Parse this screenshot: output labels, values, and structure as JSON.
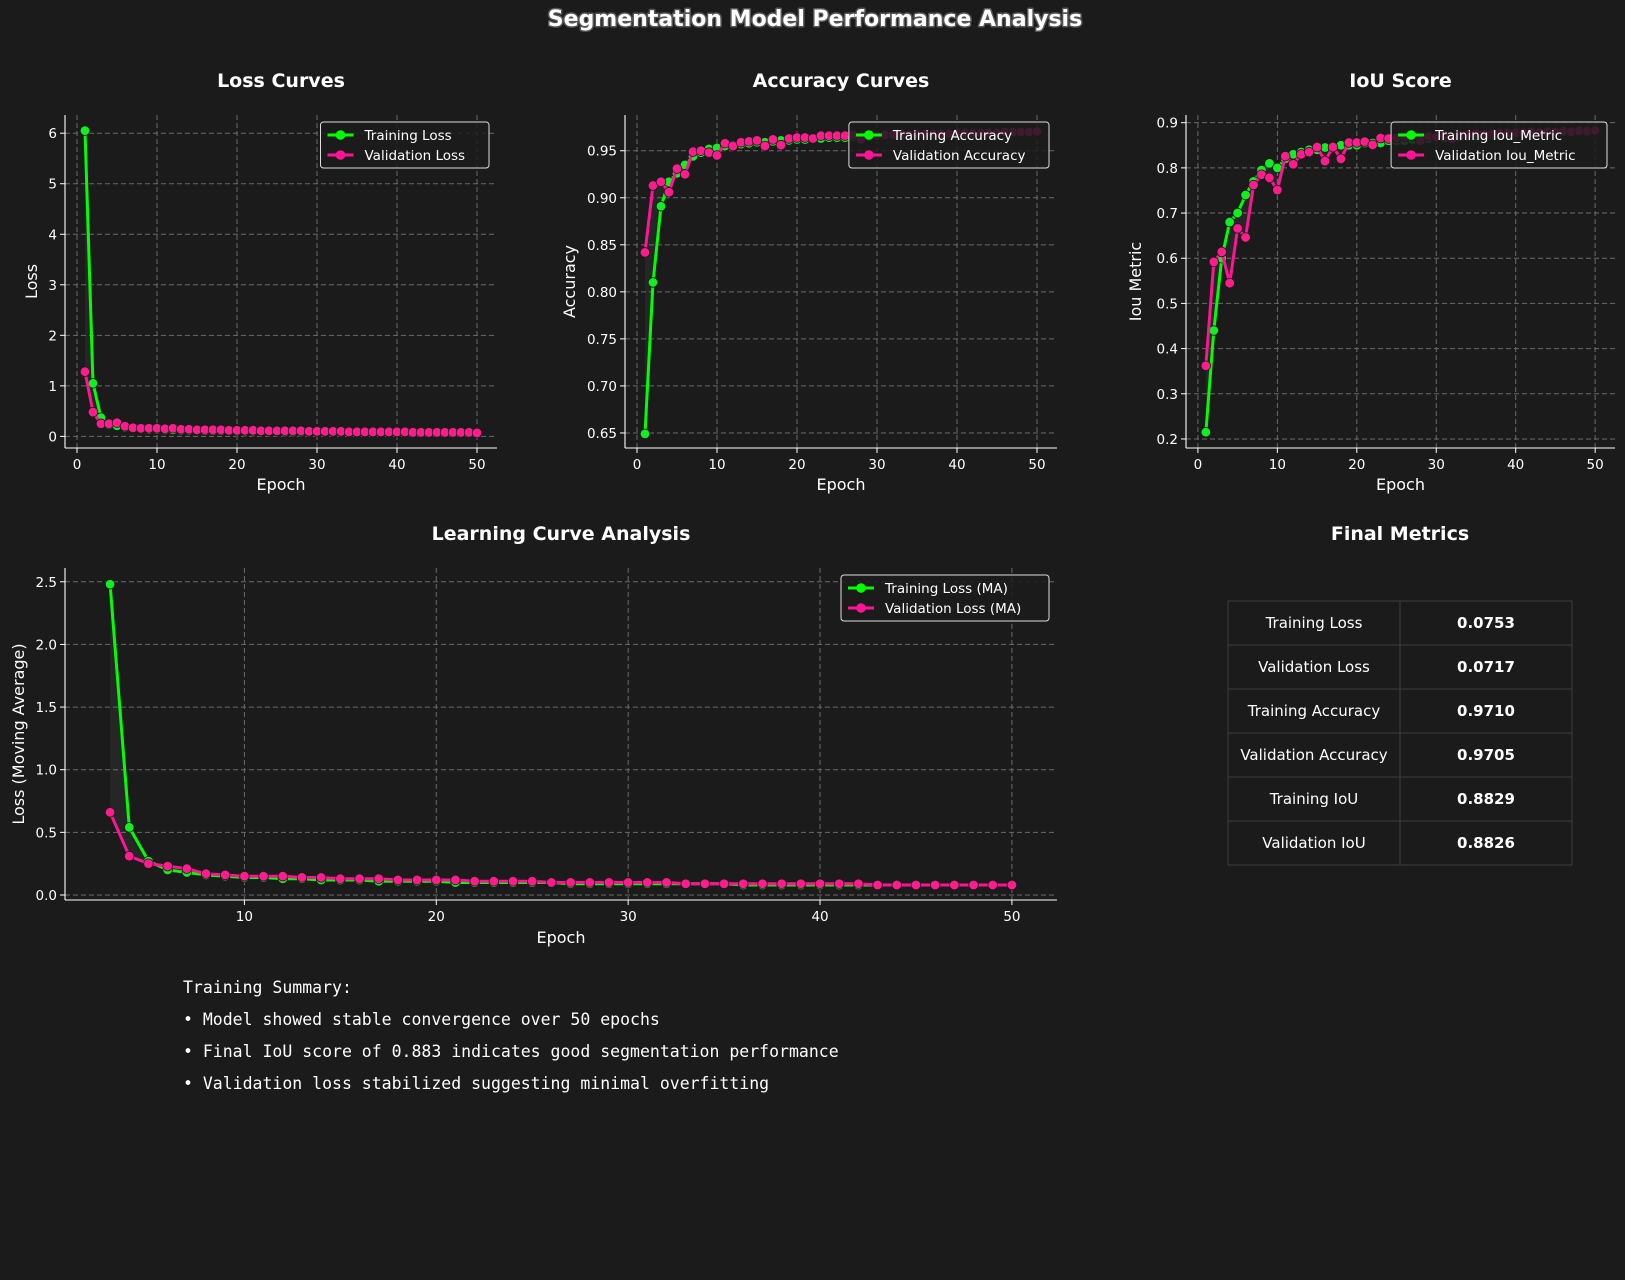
{
  "title": "Segmentation Model Performance Analysis",
  "colors": {
    "background": "#1b1b1b",
    "train": "#00ff00",
    "train_marker": "#11ee22",
    "val": "#ff1493",
    "val_marker": "#ff1c8d",
    "text": "#ffffff",
    "grid": "#6a6a6a"
  },
  "chart_data": [
    {
      "type": "line",
      "title": "Loss Curves",
      "xlabel": "Epoch",
      "ylabel": "Loss",
      "xlim": [
        -1.5,
        52.5
      ],
      "ylim": [
        -0.23,
        6.36
      ],
      "xticks": [
        0,
        10,
        20,
        30,
        40,
        50
      ],
      "yticks": [
        0,
        1,
        2,
        3,
        4,
        5,
        6
      ],
      "tick_format": 0,
      "legend": "top-right",
      "grid": true,
      "x": [
        1,
        2,
        3,
        4,
        5,
        6,
        7,
        8,
        9,
        10,
        11,
        12,
        13,
        14,
        15,
        16,
        17,
        18,
        19,
        20,
        21,
        22,
        23,
        24,
        25,
        26,
        27,
        28,
        29,
        30,
        31,
        32,
        33,
        34,
        35,
        36,
        37,
        38,
        39,
        40,
        41,
        42,
        43,
        44,
        45,
        46,
        47,
        48,
        49,
        50
      ],
      "series": [
        {
          "name": "Training Loss",
          "role": "train",
          "values": [
            6.05,
            1.05,
            0.37,
            0.23,
            0.21,
            0.18,
            0.16,
            0.15,
            0.14,
            0.14,
            0.13,
            0.13,
            0.12,
            0.12,
            0.12,
            0.11,
            0.11,
            0.11,
            0.11,
            0.1,
            0.1,
            0.1,
            0.1,
            0.1,
            0.1,
            0.09,
            0.09,
            0.09,
            0.09,
            0.09,
            0.09,
            0.09,
            0.09,
            0.09,
            0.08,
            0.08,
            0.08,
            0.08,
            0.08,
            0.08,
            0.08,
            0.08,
            0.08,
            0.08,
            0.08,
            0.08,
            0.08,
            0.08,
            0.08,
            0.08
          ]
        },
        {
          "name": "Validation Loss",
          "role": "val",
          "values": [
            1.28,
            0.48,
            0.25,
            0.25,
            0.27,
            0.2,
            0.17,
            0.16,
            0.16,
            0.16,
            0.15,
            0.16,
            0.14,
            0.14,
            0.13,
            0.13,
            0.13,
            0.13,
            0.12,
            0.12,
            0.12,
            0.12,
            0.11,
            0.11,
            0.11,
            0.11,
            0.11,
            0.11,
            0.1,
            0.1,
            0.1,
            0.1,
            0.1,
            0.09,
            0.09,
            0.09,
            0.09,
            0.09,
            0.09,
            0.09,
            0.09,
            0.08,
            0.08,
            0.08,
            0.08,
            0.08,
            0.08,
            0.08,
            0.08,
            0.07
          ]
        }
      ]
    },
    {
      "type": "line",
      "title": "Accuracy Curves",
      "xlabel": "Epoch",
      "ylabel": "Accuracy",
      "xlim": [
        -1.5,
        52.5
      ],
      "ylim": [
        0.634,
        0.988
      ],
      "xticks": [
        0,
        10,
        20,
        30,
        40,
        50
      ],
      "yticks": [
        0.65,
        0.7,
        0.75,
        0.8,
        0.85,
        0.9,
        0.95
      ],
      "tick_format": 2,
      "legend": "top-right",
      "grid": true,
      "x": [
        1,
        2,
        3,
        4,
        5,
        6,
        7,
        8,
        9,
        10,
        11,
        12,
        13,
        14,
        15,
        16,
        17,
        18,
        19,
        20,
        21,
        22,
        23,
        24,
        25,
        26,
        27,
        28,
        29,
        30,
        31,
        32,
        33,
        34,
        35,
        36,
        37,
        38,
        39,
        40,
        41,
        42,
        43,
        44,
        45,
        46,
        47,
        48,
        49,
        50
      ],
      "series": [
        {
          "name": "Training Accuracy",
          "role": "train",
          "values": [
            0.649,
            0.81,
            0.891,
            0.917,
            0.926,
            0.935,
            0.944,
            0.948,
            0.952,
            0.953,
            0.955,
            0.956,
            0.957,
            0.958,
            0.959,
            0.959,
            0.96,
            0.961,
            0.961,
            0.962,
            0.962,
            0.963,
            0.963,
            0.964,
            0.964,
            0.964,
            0.965,
            0.965,
            0.965,
            0.966,
            0.966,
            0.966,
            0.966,
            0.967,
            0.967,
            0.967,
            0.967,
            0.968,
            0.968,
            0.968,
            0.968,
            0.968,
            0.969,
            0.969,
            0.969,
            0.969,
            0.969,
            0.97,
            0.97,
            0.971
          ]
        },
        {
          "name": "Validation Accuracy",
          "role": "val",
          "values": [
            0.842,
            0.913,
            0.917,
            0.906,
            0.931,
            0.925,
            0.949,
            0.95,
            0.948,
            0.945,
            0.958,
            0.955,
            0.959,
            0.96,
            0.961,
            0.955,
            0.962,
            0.956,
            0.963,
            0.964,
            0.964,
            0.963,
            0.966,
            0.966,
            0.966,
            0.966,
            0.967,
            0.962,
            0.967,
            0.966,
            0.967,
            0.967,
            0.968,
            0.967,
            0.968,
            0.968,
            0.968,
            0.968,
            0.968,
            0.969,
            0.969,
            0.969,
            0.969,
            0.969,
            0.969,
            0.97,
            0.97,
            0.97,
            0.97,
            0.9705
          ]
        }
      ]
    },
    {
      "type": "line",
      "title": "IoU Score",
      "xlabel": "Epoch",
      "ylabel": "Iou Metric",
      "xlim": [
        -1.5,
        52.5
      ],
      "ylim": [
        0.18,
        0.917
      ],
      "xticks": [
        0,
        10,
        20,
        30,
        40,
        50
      ],
      "yticks": [
        0.2,
        0.3,
        0.4,
        0.5,
        0.6,
        0.7,
        0.8,
        0.9
      ],
      "tick_format": 1,
      "legend": "top-right",
      "grid": true,
      "x": [
        1,
        2,
        3,
        4,
        5,
        6,
        7,
        8,
        9,
        10,
        11,
        12,
        13,
        14,
        15,
        16,
        17,
        18,
        19,
        20,
        21,
        22,
        23,
        24,
        25,
        26,
        27,
        28,
        29,
        30,
        31,
        32,
        33,
        34,
        35,
        36,
        37,
        38,
        39,
        40,
        41,
        42,
        43,
        44,
        45,
        46,
        47,
        48,
        49,
        50
      ],
      "series": [
        {
          "name": "Training Iou_Metric",
          "role": "train",
          "values": [
            0.215,
            0.44,
            0.6,
            0.68,
            0.7,
            0.74,
            0.77,
            0.795,
            0.81,
            0.8,
            0.82,
            0.83,
            0.835,
            0.84,
            0.84,
            0.845,
            0.845,
            0.85,
            0.85,
            0.85,
            0.855,
            0.855,
            0.855,
            0.86,
            0.86,
            0.86,
            0.862,
            0.864,
            0.865,
            0.866,
            0.867,
            0.868,
            0.869,
            0.87,
            0.87,
            0.871,
            0.872,
            0.873,
            0.874,
            0.875,
            0.875,
            0.876,
            0.877,
            0.878,
            0.879,
            0.88,
            0.88,
            0.881,
            0.882,
            0.883
          ]
        },
        {
          "name": "Validation Iou_Metric",
          "role": "val",
          "values": [
            0.362,
            0.592,
            0.614,
            0.545,
            0.666,
            0.646,
            0.762,
            0.785,
            0.778,
            0.751,
            0.826,
            0.808,
            0.83,
            0.835,
            0.846,
            0.815,
            0.846,
            0.82,
            0.856,
            0.856,
            0.858,
            0.851,
            0.866,
            0.865,
            0.866,
            0.868,
            0.87,
            0.86,
            0.87,
            0.868,
            0.872,
            0.864,
            0.872,
            0.874,
            0.876,
            0.875,
            0.876,
            0.877,
            0.877,
            0.878,
            0.877,
            0.879,
            0.878,
            0.88,
            0.879,
            0.881,
            0.88,
            0.882,
            0.881,
            0.883
          ]
        }
      ]
    },
    {
      "type": "line",
      "title": "Learning Curve Analysis",
      "xlabel": "Epoch",
      "ylabel": "Loss (Moving Average)",
      "xlim": [
        0.65,
        52.35
      ],
      "ylim": [
        -0.04,
        2.61
      ],
      "xticks": [
        10,
        20,
        30,
        40,
        50
      ],
      "yticks": [
        0.0,
        0.5,
        1.0,
        1.5,
        2.0,
        2.5
      ],
      "tick_format": 1,
      "legend": "top-right",
      "grid": true,
      "x": [
        3,
        4,
        5,
        6,
        7,
        8,
        9,
        10,
        11,
        12,
        13,
        14,
        15,
        16,
        17,
        18,
        19,
        20,
        21,
        22,
        23,
        24,
        25,
        26,
        27,
        28,
        29,
        30,
        31,
        32,
        33,
        34,
        35,
        36,
        37,
        38,
        39,
        40,
        41,
        42,
        43,
        44,
        45,
        46,
        47,
        48,
        49,
        50
      ],
      "series": [
        {
          "name": "Training Loss (MA)",
          "role": "train",
          "values": [
            2.48,
            0.54,
            0.27,
            0.2,
            0.18,
            0.16,
            0.15,
            0.14,
            0.14,
            0.13,
            0.13,
            0.12,
            0.12,
            0.12,
            0.11,
            0.11,
            0.11,
            0.11,
            0.1,
            0.1,
            0.1,
            0.1,
            0.1,
            0.1,
            0.09,
            0.09,
            0.09,
            0.09,
            0.09,
            0.09,
            0.09,
            0.09,
            0.09,
            0.08,
            0.08,
            0.08,
            0.08,
            0.08,
            0.08,
            0.08,
            0.08,
            0.08,
            0.08,
            0.08,
            0.08,
            0.08,
            0.08,
            0.08
          ]
        },
        {
          "name": "Validation Loss (MA)",
          "role": "val",
          "values": [
            0.66,
            0.31,
            0.25,
            0.23,
            0.21,
            0.17,
            0.16,
            0.15,
            0.15,
            0.15,
            0.14,
            0.14,
            0.13,
            0.13,
            0.13,
            0.12,
            0.12,
            0.12,
            0.12,
            0.11,
            0.11,
            0.11,
            0.11,
            0.1,
            0.1,
            0.1,
            0.1,
            0.1,
            0.1,
            0.1,
            0.09,
            0.09,
            0.09,
            0.09,
            0.09,
            0.09,
            0.09,
            0.09,
            0.09,
            0.09,
            0.08,
            0.08,
            0.08,
            0.08,
            0.08,
            0.08,
            0.08,
            0.08
          ]
        }
      ]
    },
    {
      "type": "table",
      "title": "Final Metrics",
      "rows": [
        {
          "label": "Training Loss",
          "value": "0.0753"
        },
        {
          "label": "Validation Loss",
          "value": "0.0717"
        },
        {
          "label": "Training Accuracy",
          "value": "0.9710"
        },
        {
          "label": "Validation Accuracy",
          "value": "0.9705"
        },
        {
          "label": "Training IoU",
          "value": "0.8829"
        },
        {
          "label": "Validation IoU",
          "value": "0.8826"
        }
      ]
    }
  ],
  "summary": {
    "heading": "Training Summary:",
    "lines": [
      "• Model showed stable convergence over 50 epochs",
      "• Final IoU score of 0.883 indicates good segmentation performance",
      "• Validation loss stabilized suggesting minimal overfitting"
    ]
  }
}
